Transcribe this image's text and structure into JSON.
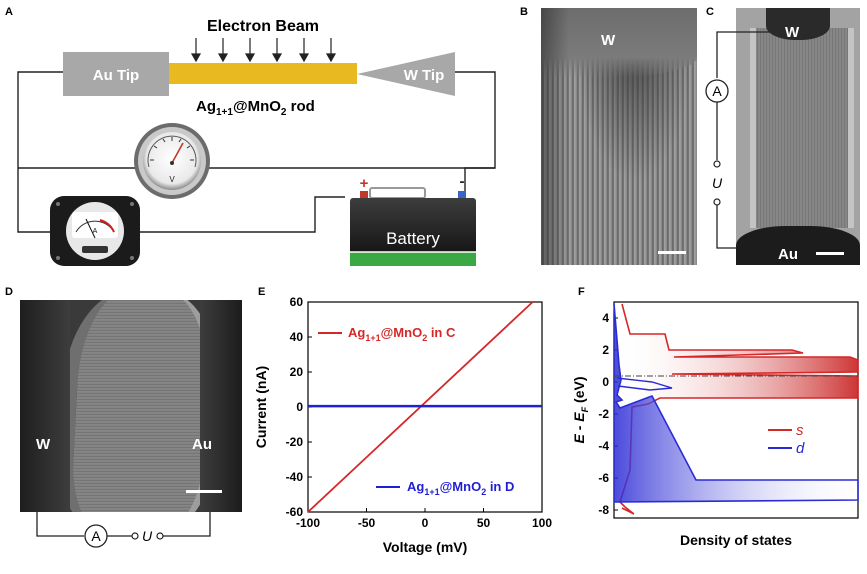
{
  "panel_labels": [
    "A",
    "B",
    "C",
    "D",
    "E",
    "F"
  ],
  "panelA": {
    "electron_beam": "Electron Beam",
    "au_tip": "Au Tip",
    "w_tip": "W Tip",
    "rod_label": "Ag",
    "rod_sub": "1+1",
    "rod_mid": "@MnO",
    "rod_sub2": "2",
    "rod_end": " rod",
    "battery": "Battery",
    "plus": "+",
    "minus": "-",
    "voltmeter_unit": "V",
    "ammeter_unit": "A",
    "accent_gold": "#e8b920",
    "accent_gray": "#a9a9a9"
  },
  "panelB": {
    "label_w": "W"
  },
  "panelC": {
    "label_w": "W",
    "label_au": "Au",
    "ammeter": "A",
    "voltage": "U"
  },
  "panelD": {
    "label_w": "W",
    "label_au": "Au",
    "ammeter": "A",
    "voltage": "U"
  },
  "chart_data": [
    {
      "type": "line",
      "panel": "E",
      "xlabel": "Voltage (mV)",
      "ylabel": "Current (nA)",
      "xlim": [
        -100,
        100
      ],
      "ylim": [
        -60,
        60
      ],
      "xticks": [
        -100,
        -50,
        0,
        50,
        100
      ],
      "yticks": [
        -60,
        -40,
        -20,
        0,
        20,
        40,
        60
      ],
      "series": [
        {
          "name_main": "Ag",
          "name_sub": "1+1",
          "name_mid": "@MnO",
          "name_sub2": "2",
          "name_end": " in C",
          "color": "#d62728",
          "x": [
            -100,
            92
          ],
          "y": [
            -60,
            60
          ]
        },
        {
          "name_main": "Ag",
          "name_sub": "1+1",
          "name_mid": "@MnO",
          "name_sub2": "2",
          "name_end": " in D",
          "color": "#1f1fd6",
          "x": [
            -100,
            100
          ],
          "y": [
            0.5,
            0.5
          ]
        }
      ]
    },
    {
      "type": "line",
      "panel": "F",
      "xlabel": "Density of states",
      "ylabel_main": "E - E",
      "ylabel_sub": "F",
      "ylabel_unit": " (eV)",
      "ylim": [
        -8.5,
        5
      ],
      "yticks": [
        4,
        2,
        0,
        -2,
        -4,
        -6,
        -8
      ],
      "legend": [
        {
          "name": "s",
          "color": "#d62728"
        },
        {
          "name": "d",
          "color": "#2b2bd6"
        }
      ]
    }
  ]
}
